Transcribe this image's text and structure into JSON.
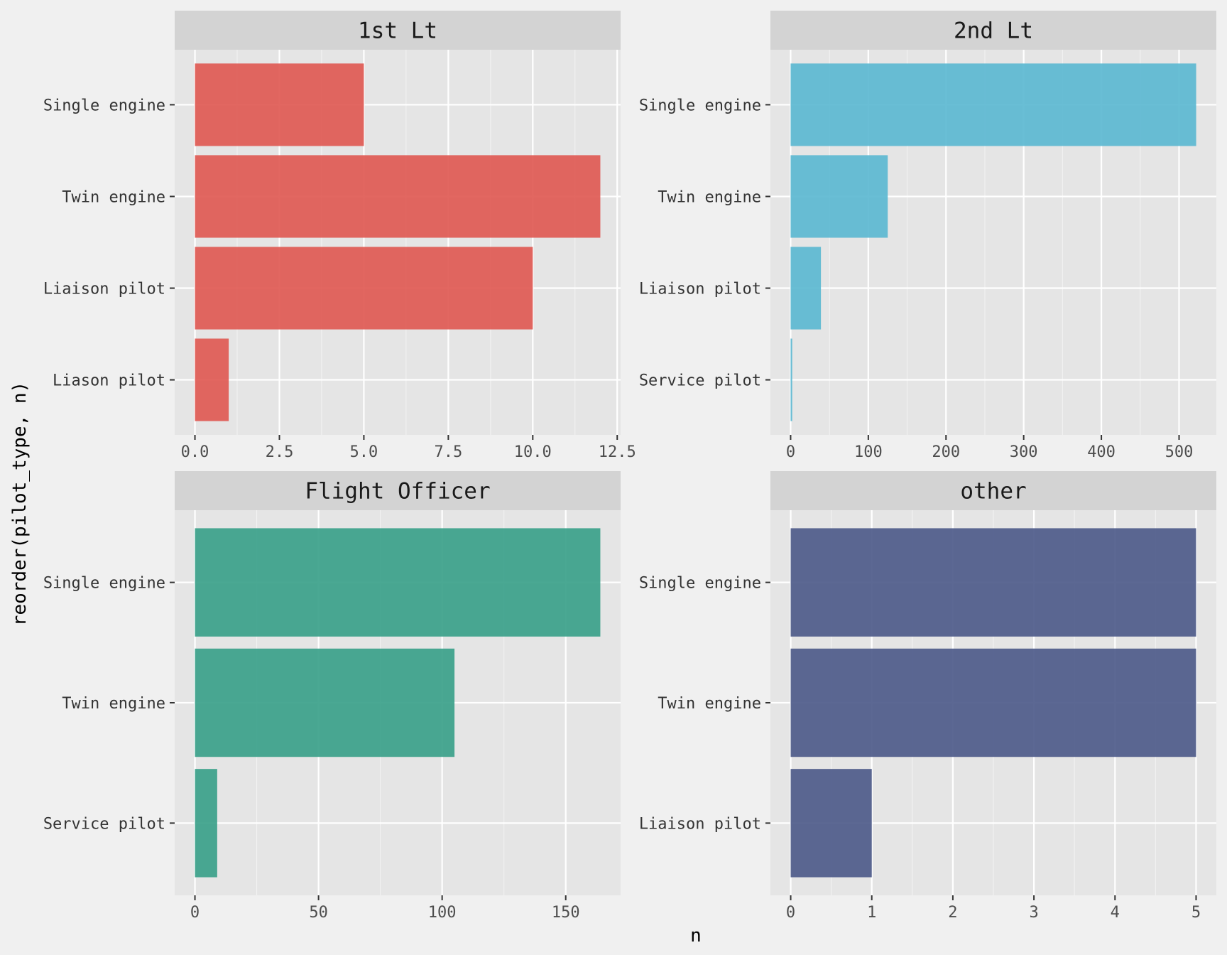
{
  "chart_data": {
    "type": "bar",
    "orientation": "horizontal",
    "xlabel": "n",
    "ylabel": "reorder(pilot_type, n)",
    "grid": true,
    "legend": "none",
    "colors": {
      "background": "#f0f0f0",
      "panel": "#e5e5e5",
      "strip": "#d3d3d3",
      "gridline": "#ffffff"
    },
    "panels": [
      {
        "title": "1st Lt",
        "color": "#e05a54",
        "categories": [
          "Single engine",
          "Twin engine",
          "Liaison pilot",
          "Liason pilot"
        ],
        "values": [
          5,
          12,
          10,
          1
        ],
        "xlim": [
          -0.6,
          12.6
        ],
        "ticks": [
          "0.0",
          "2.5",
          "5.0",
          "7.5",
          "10.0",
          "12.5"
        ],
        "tick_values": [
          0,
          2.5,
          5,
          7.5,
          10,
          12.5
        ]
      },
      {
        "title": "2nd Lt",
        "color": "#5cb8d1",
        "categories": [
          "Single engine",
          "Twin engine",
          "Liaison pilot",
          "Service pilot"
        ],
        "values": [
          522,
          125,
          39,
          2
        ],
        "xlim": [
          -26,
          548
        ],
        "ticks": [
          "0",
          "100",
          "200",
          "300",
          "400",
          "500"
        ],
        "tick_values": [
          0,
          100,
          200,
          300,
          400,
          500
        ]
      },
      {
        "title": "Flight Officer",
        "color": "#3ba18a",
        "categories": [
          "Single engine",
          "Twin engine",
          "Service pilot"
        ],
        "values": [
          164,
          105,
          9
        ],
        "xlim": [
          -8.2,
          172.2
        ],
        "ticks": [
          "0",
          "50",
          "100",
          "150"
        ],
        "tick_values": [
          0,
          50,
          100,
          150
        ]
      },
      {
        "title": "other",
        "color": "#4e5b8a",
        "categories": [
          "Single engine",
          "Twin engine",
          "Liaison pilot"
        ],
        "values": [
          5,
          5,
          1
        ],
        "xlim": [
          -0.25,
          5.25
        ],
        "ticks": [
          "0",
          "1",
          "2",
          "3",
          "4",
          "5"
        ],
        "tick_values": [
          0,
          1,
          2,
          3,
          4,
          5
        ]
      }
    ]
  }
}
